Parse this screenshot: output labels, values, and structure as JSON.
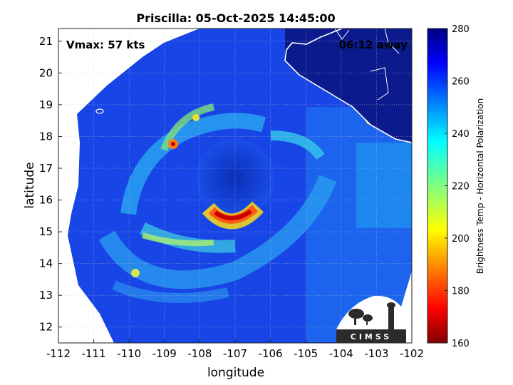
{
  "chart_data": {
    "type": "heatmap",
    "title": "Priscilla: 05-Oct-2025 14:45:00",
    "xlabel": "longitude",
    "ylabel": "latitude",
    "xlim": [
      -112,
      -102
    ],
    "ylim": [
      11.5,
      21.4
    ],
    "xticks": [
      -112,
      -111,
      -110,
      -109,
      -108,
      -107,
      -106,
      -105,
      -104,
      -103,
      -102
    ],
    "yticks": [
      12,
      13,
      14,
      15,
      16,
      17,
      18,
      19,
      20,
      21
    ],
    "grid": true,
    "annotations": {
      "vmax": "Vmax: 57 kts",
      "away": "06:12 away",
      "logo": "CIMSS"
    },
    "colorbar": {
      "label": "Brightness Temp - Horizontal Polarization",
      "min": 160,
      "max": 280,
      "ticks": [
        160,
        180,
        200,
        220,
        240,
        260,
        280
      ]
    },
    "storm_center": {
      "lon": -107.1,
      "lat": 16.4
    },
    "eyewall_min_temp": {
      "lon": -107.3,
      "lat": 15.3,
      "value": 172
    }
  },
  "colors": {
    "background": "#ffffff",
    "coast": "#ffffff",
    "land": "#0b1a8c",
    "grid": "#c8c8c8"
  }
}
